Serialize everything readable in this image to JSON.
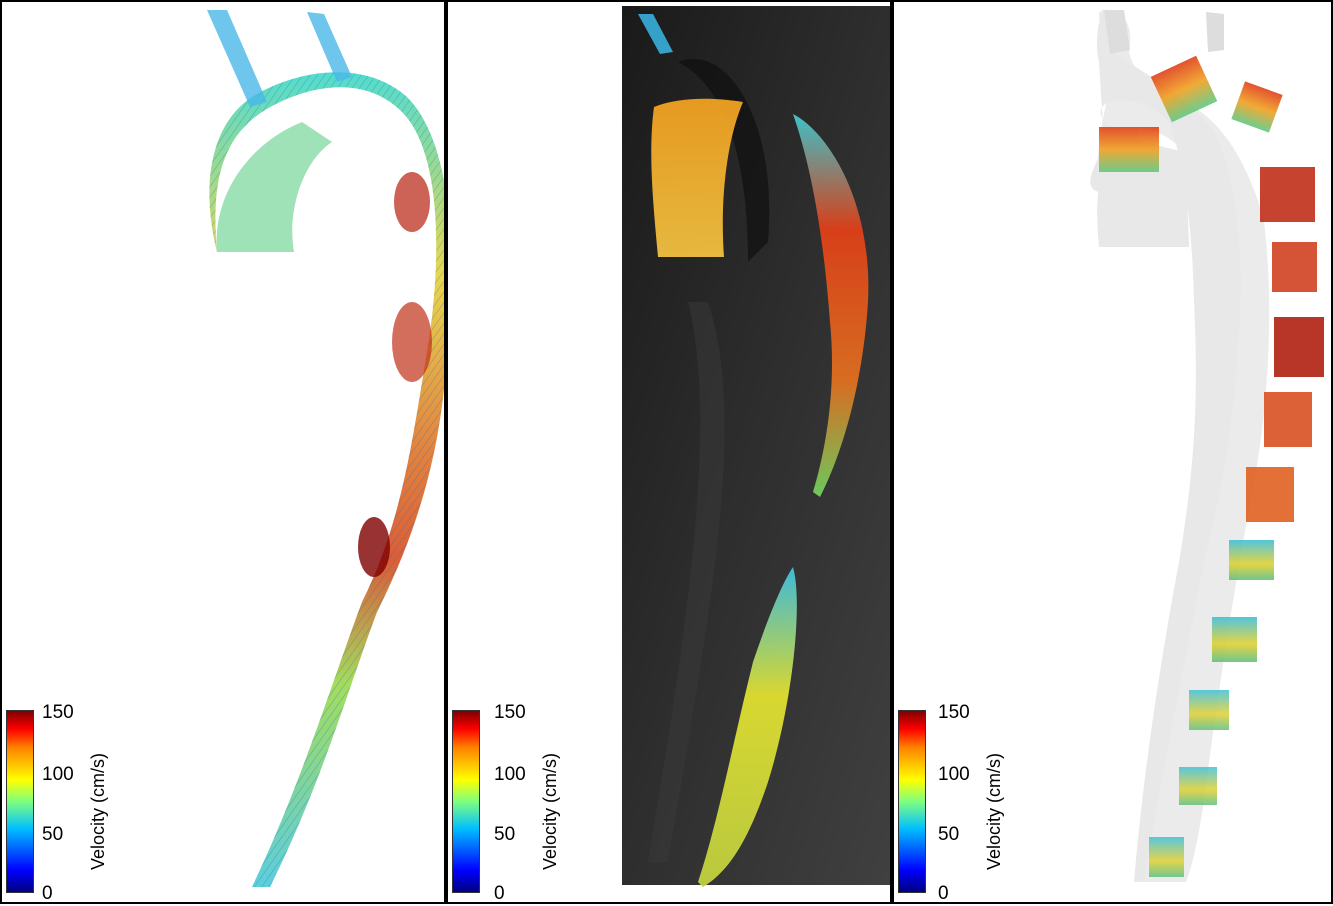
{
  "colorbar": {
    "label": "Velocity (cm/s)",
    "ticks": [
      "150",
      "100",
      "50",
      "0"
    ]
  },
  "colors": {
    "low": "#00007f",
    "mid_low": "#00bfff",
    "mid": "#7fff7f",
    "mid_high": "#ffff00",
    "high": "#ff0000",
    "max": "#7f0000"
  }
}
